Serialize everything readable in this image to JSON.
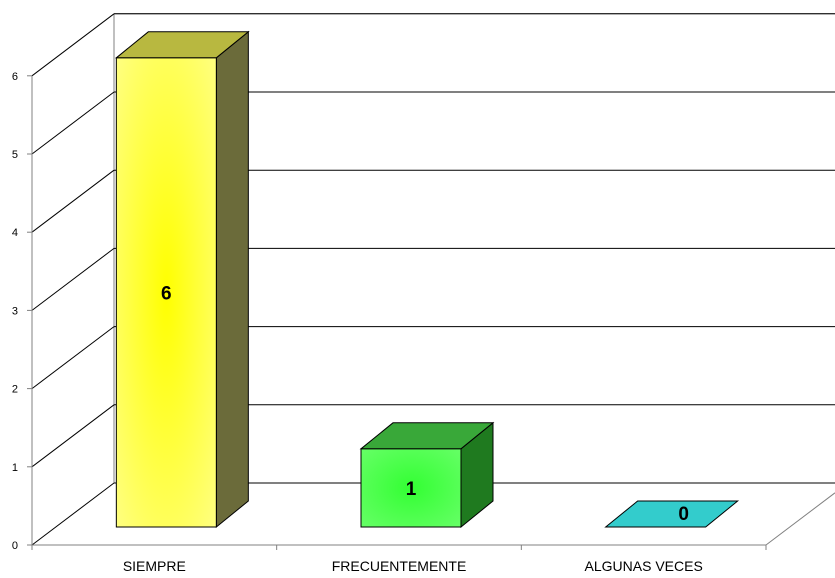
{
  "chart_data": {
    "type": "bar",
    "style": "3d-column",
    "categories": [
      "SIEMPRE",
      "FRECUENTEMENTE",
      "ALGUNAS VECES"
    ],
    "values": [
      6,
      1,
      0
    ],
    "data_labels": [
      "6",
      "1",
      "0"
    ],
    "ylim": [
      0,
      6
    ],
    "yticks": [
      0,
      1,
      2,
      3,
      4,
      5,
      6
    ],
    "ytick_labels": [
      "0",
      "1",
      "2",
      "3",
      "4",
      "5",
      "6"
    ],
    "grid": true,
    "legend": "none",
    "title": "",
    "xlabel": "",
    "ylabel": "",
    "colors": {
      "bars": [
        "#ffff80",
        "#66ff66",
        "#33cccc"
      ],
      "bar_shades": [
        "#6b6b3a",
        "#1f7a1f",
        "#1a7a7a"
      ],
      "bar_tops": [
        "#b8b840",
        "#39a839",
        "#33cccc"
      ],
      "bar_highlights": [
        "#ffff00",
        "#33ff33",
        "#33cccc"
      ],
      "grid": "#000000",
      "axis": "#808080"
    }
  }
}
